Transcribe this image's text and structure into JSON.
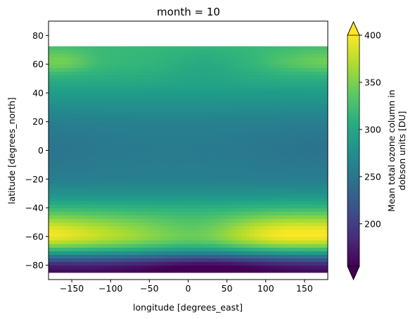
{
  "chart_data": {
    "type": "heatmap",
    "title": "month = 10",
    "xlabel": "longitude [degrees_east]",
    "ylabel": "latitude [degrees_north]",
    "xlim": [
      -180,
      180
    ],
    "ylim": [
      -90,
      90
    ],
    "x_ticks": [
      -150,
      -100,
      -50,
      0,
      50,
      100,
      150
    ],
    "y_ticks": [
      -80,
      -60,
      -40,
      -20,
      0,
      20,
      40,
      60,
      80
    ],
    "x_tick_labels": [
      "−150",
      "−100",
      "−50",
      "0",
      "50",
      "100",
      "150"
    ],
    "y_tick_labels": [
      "−80",
      "−60",
      "−40",
      "−20",
      "0",
      "20",
      "40",
      "60",
      "80"
    ],
    "data_lat_extent": [
      -85,
      72.5
    ],
    "colormap": "viridis",
    "colorbar": {
      "label_lines": [
        "Mean total ozone column in",
        "dobson units [DU]"
      ],
      "range": [
        155,
        400
      ],
      "ticks": [
        200,
        250,
        300,
        350,
        400
      ],
      "tick_labels": [
        "200",
        "250",
        "300",
        "350",
        "400"
      ],
      "extend": "both"
    },
    "field_description": "Total ozone by latitude band: ~150 DU polar minimum over Antarctica (ozone hole, centered near 0–60°E), ~390 DU collar near 55–60°S strongest at 100–180°E and 150–180°W, ~255–265 DU in tropics, ~310–330 DU at northern mid-latitudes.",
    "lat_profile": [
      {
        "lat": -85,
        "ozone": 160
      },
      {
        "lat": -80,
        "ozone": 175
      },
      {
        "lat": -75,
        "ozone": 230
      },
      {
        "lat": -70,
        "ozone": 300
      },
      {
        "lat": -65,
        "ozone": 350
      },
      {
        "lat": -60,
        "ozone": 375
      },
      {
        "lat": -55,
        "ozone": 370
      },
      {
        "lat": -50,
        "ozone": 355
      },
      {
        "lat": -45,
        "ozone": 335
      },
      {
        "lat": -40,
        "ozone": 315
      },
      {
        "lat": -35,
        "ozone": 295
      },
      {
        "lat": -30,
        "ozone": 280
      },
      {
        "lat": -25,
        "ozone": 270
      },
      {
        "lat": -20,
        "ozone": 262
      },
      {
        "lat": -10,
        "ozone": 258
      },
      {
        "lat": 0,
        "ozone": 256
      },
      {
        "lat": 10,
        "ozone": 258
      },
      {
        "lat": 20,
        "ozone": 263
      },
      {
        "lat": 30,
        "ozone": 275
      },
      {
        "lat": 40,
        "ozone": 290
      },
      {
        "lat": 50,
        "ozone": 305
      },
      {
        "lat": 60,
        "ozone": 318
      },
      {
        "lat": 72.5,
        "ozone": 320
      }
    ]
  }
}
